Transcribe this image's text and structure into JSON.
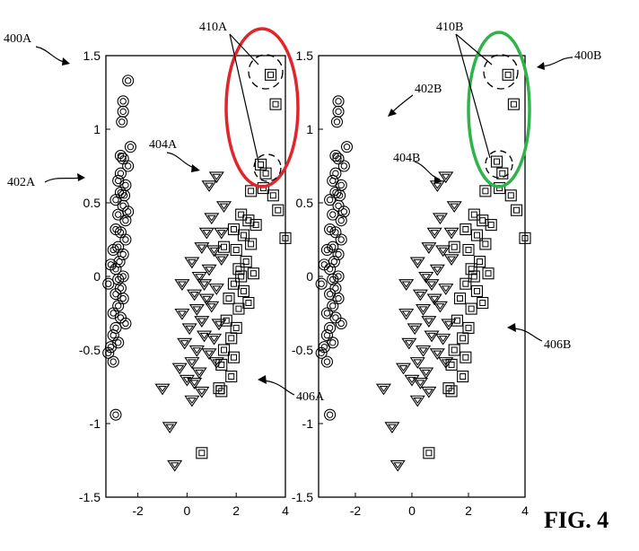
{
  "figure_label": "FIG. 4",
  "chart_data": [
    {
      "type": "scatter",
      "xlim": [
        -3.3,
        4.0
      ],
      "ylim": [
        -1.5,
        1.5
      ],
      "xticks": [
        "-2",
        "0",
        "2",
        "4"
      ],
      "yticks": [
        "-1.5",
        "-1",
        "-0.5",
        "0",
        "0.5",
        "1",
        "1.5"
      ],
      "grid": false,
      "series": [
        {
          "marker": "circle",
          "points": [
            [
              -2.4,
              1.33
            ],
            [
              -2.6,
              1.19
            ],
            [
              -2.6,
              1.12
            ],
            [
              -2.65,
              1.05
            ],
            [
              -2.3,
              0.88
            ],
            [
              -2.7,
              0.82
            ],
            [
              -2.6,
              0.8
            ],
            [
              -2.4,
              0.75
            ],
            [
              -2.7,
              0.7
            ],
            [
              -2.8,
              0.65
            ],
            [
              -2.5,
              0.62
            ],
            [
              -2.7,
              0.57
            ],
            [
              -2.9,
              0.52
            ],
            [
              -2.6,
              0.48
            ],
            [
              -2.4,
              0.44
            ],
            [
              -2.8,
              0.42
            ],
            [
              -2.5,
              0.38
            ],
            [
              -2.9,
              0.32
            ],
            [
              -2.7,
              0.3
            ],
            [
              -2.5,
              0.25
            ],
            [
              -2.8,
              0.2
            ],
            [
              -3.0,
              0.18
            ],
            [
              -2.6,
              0.15
            ],
            [
              -2.75,
              0.1
            ],
            [
              -2.9,
              0.05
            ],
            [
              -2.6,
              0.0
            ],
            [
              -2.8,
              -0.02
            ],
            [
              -3.2,
              -0.05
            ],
            [
              -2.7,
              -0.08
            ],
            [
              -2.9,
              -0.12
            ],
            [
              -2.6,
              -0.15
            ],
            [
              -2.8,
              -0.2
            ],
            [
              -3.0,
              -0.25
            ],
            [
              -2.7,
              -0.28
            ],
            [
              -2.5,
              -0.32
            ],
            [
              -2.9,
              -0.35
            ],
            [
              -3.0,
              -0.4
            ],
            [
              -2.8,
              -0.45
            ],
            [
              -3.1,
              -0.48
            ],
            [
              -3.2,
              -0.52
            ],
            [
              -3.0,
              -0.58
            ],
            [
              -2.9,
              -0.94
            ],
            [
              -3.1,
              0.08
            ],
            [
              -2.55,
              0.55
            ]
          ]
        },
        {
          "marker": "triangle",
          "points": [
            [
              1.2,
              0.68
            ],
            [
              0.9,
              0.62
            ],
            [
              1.5,
              0.48
            ],
            [
              1.0,
              0.4
            ],
            [
              0.8,
              0.3
            ],
            [
              0.6,
              0.2
            ],
            [
              1.1,
              0.18
            ],
            [
              1.4,
              0.12
            ],
            [
              0.9,
              0.05
            ],
            [
              0.5,
              0.0
            ],
            [
              0.7,
              -0.05
            ],
            [
              1.2,
              -0.08
            ],
            [
              0.3,
              -0.12
            ],
            [
              0.8,
              -0.15
            ],
            [
              1.0,
              -0.2
            ],
            [
              0.4,
              -0.22
            ],
            [
              -0.2,
              -0.25
            ],
            [
              0.6,
              -0.3
            ],
            [
              1.3,
              -0.32
            ],
            [
              0.1,
              -0.35
            ],
            [
              0.7,
              -0.4
            ],
            [
              1.1,
              -0.42
            ],
            [
              -0.1,
              -0.45
            ],
            [
              0.4,
              -0.5
            ],
            [
              0.9,
              -0.52
            ],
            [
              0.2,
              -0.58
            ],
            [
              1.2,
              -0.58
            ],
            [
              -0.3,
              -0.62
            ],
            [
              0.5,
              -0.65
            ],
            [
              0.0,
              -0.7
            ],
            [
              0.3,
              -0.72
            ],
            [
              0.6,
              -0.78
            ],
            [
              -1.0,
              -0.76
            ],
            [
              0.2,
              -0.84
            ],
            [
              -0.7,
              -1.02
            ],
            [
              -0.5,
              -1.28
            ],
            [
              1.4,
              0.3
            ],
            [
              0.2,
              0.1
            ],
            [
              -0.2,
              -0.05
            ]
          ]
        },
        {
          "marker": "square",
          "points": [
            [
              3.4,
              1.37
            ],
            [
              3.6,
              1.17
            ],
            [
              3.0,
              0.76
            ],
            [
              3.2,
              0.7
            ],
            [
              3.1,
              0.6
            ],
            [
              2.6,
              0.58
            ],
            [
              3.5,
              0.55
            ],
            [
              3.7,
              0.45
            ],
            [
              2.2,
              0.42
            ],
            [
              2.5,
              0.38
            ],
            [
              2.8,
              0.35
            ],
            [
              1.9,
              0.32
            ],
            [
              2.3,
              0.28
            ],
            [
              2.6,
              0.22
            ],
            [
              2.0,
              0.18
            ],
            [
              4.0,
              0.26
            ],
            [
              2.4,
              0.1
            ],
            [
              2.1,
              0.05
            ],
            [
              2.7,
              0.02
            ],
            [
              1.9,
              -0.05
            ],
            [
              2.3,
              -0.1
            ],
            [
              1.7,
              -0.15
            ],
            [
              2.5,
              -0.18
            ],
            [
              2.1,
              -0.22
            ],
            [
              1.6,
              -0.3
            ],
            [
              2.0,
              -0.35
            ],
            [
              1.8,
              -0.42
            ],
            [
              1.5,
              -0.5
            ],
            [
              1.9,
              -0.55
            ],
            [
              1.4,
              -0.6
            ],
            [
              1.8,
              -0.68
            ],
            [
              1.3,
              -0.76
            ],
            [
              1.4,
              -0.78
            ],
            [
              0.6,
              -1.2
            ],
            [
              1.5,
              0.2
            ],
            [
              2.2,
              0.0
            ]
          ]
        }
      ]
    },
    {
      "type": "scatter",
      "xlim": [
        -3.3,
        4.0
      ],
      "ylim": [
        -1.5,
        1.5
      ],
      "xticks": [
        "-2",
        "0",
        "2",
        "4"
      ],
      "yticks": [
        "-1.5",
        "-1",
        "-0.5",
        "0",
        "0.5",
        "1",
        "1.5"
      ],
      "grid": false,
      "series": [
        {
          "marker": "circle",
          "points": [
            [
              -2.6,
              1.19
            ],
            [
              -2.6,
              1.12
            ],
            [
              -2.65,
              1.05
            ],
            [
              -2.3,
              0.88
            ],
            [
              -2.7,
              0.82
            ],
            [
              -2.6,
              0.8
            ],
            [
              -2.4,
              0.75
            ],
            [
              -2.7,
              0.7
            ],
            [
              -2.8,
              0.65
            ],
            [
              -2.5,
              0.62
            ],
            [
              -2.7,
              0.57
            ],
            [
              -2.9,
              0.52
            ],
            [
              -2.6,
              0.48
            ],
            [
              -2.4,
              0.44
            ],
            [
              -2.8,
              0.42
            ],
            [
              -2.5,
              0.38
            ],
            [
              -2.9,
              0.32
            ],
            [
              -2.7,
              0.3
            ],
            [
              -2.5,
              0.25
            ],
            [
              -2.8,
              0.2
            ],
            [
              -3.0,
              0.18
            ],
            [
              -2.6,
              0.15
            ],
            [
              -2.75,
              0.1
            ],
            [
              -2.9,
              0.05
            ],
            [
              -2.6,
              0.0
            ],
            [
              -2.8,
              -0.02
            ],
            [
              -3.2,
              -0.05
            ],
            [
              -2.7,
              -0.08
            ],
            [
              -2.9,
              -0.12
            ],
            [
              -2.6,
              -0.15
            ],
            [
              -2.8,
              -0.2
            ],
            [
              -3.0,
              -0.25
            ],
            [
              -2.7,
              -0.28
            ],
            [
              -2.5,
              -0.32
            ],
            [
              -2.9,
              -0.35
            ],
            [
              -3.0,
              -0.4
            ],
            [
              -2.8,
              -0.45
            ],
            [
              -3.1,
              -0.48
            ],
            [
              -3.2,
              -0.52
            ],
            [
              -3.0,
              -0.58
            ],
            [
              -2.9,
              -0.94
            ],
            [
              -3.1,
              0.08
            ],
            [
              -2.55,
              0.55
            ]
          ]
        },
        {
          "marker": "triangle",
          "points": [
            [
              1.2,
              0.68
            ],
            [
              0.9,
              0.62
            ],
            [
              1.5,
              0.48
            ],
            [
              1.0,
              0.4
            ],
            [
              0.8,
              0.3
            ],
            [
              0.6,
              0.2
            ],
            [
              1.1,
              0.18
            ],
            [
              1.4,
              0.12
            ],
            [
              0.9,
              0.05
            ],
            [
              0.5,
              0.0
            ],
            [
              0.7,
              -0.05
            ],
            [
              1.2,
              -0.08
            ],
            [
              0.3,
              -0.12
            ],
            [
              0.8,
              -0.15
            ],
            [
              1.0,
              -0.2
            ],
            [
              0.4,
              -0.22
            ],
            [
              -0.2,
              -0.25
            ],
            [
              0.6,
              -0.3
            ],
            [
              1.3,
              -0.32
            ],
            [
              0.1,
              -0.35
            ],
            [
              0.7,
              -0.4
            ],
            [
              1.1,
              -0.42
            ],
            [
              -0.1,
              -0.45
            ],
            [
              0.4,
              -0.5
            ],
            [
              0.9,
              -0.52
            ],
            [
              0.2,
              -0.58
            ],
            [
              1.2,
              -0.58
            ],
            [
              -0.3,
              -0.62
            ],
            [
              0.5,
              -0.65
            ],
            [
              0.0,
              -0.7
            ],
            [
              0.3,
              -0.72
            ],
            [
              0.6,
              -0.78
            ],
            [
              -1.0,
              -0.76
            ],
            [
              0.2,
              -0.84
            ],
            [
              -0.7,
              -1.02
            ],
            [
              -0.5,
              -1.28
            ],
            [
              1.4,
              0.3
            ],
            [
              0.2,
              0.1
            ],
            [
              -0.2,
              -0.05
            ]
          ]
        },
        {
          "marker": "square",
          "points": [
            [
              3.4,
              1.37
            ],
            [
              3.6,
              1.17
            ],
            [
              3.0,
              0.78
            ],
            [
              3.2,
              0.7
            ],
            [
              3.1,
              0.6
            ],
            [
              2.6,
              0.58
            ],
            [
              3.5,
              0.55
            ],
            [
              3.7,
              0.45
            ],
            [
              2.2,
              0.42
            ],
            [
              2.5,
              0.38
            ],
            [
              2.8,
              0.35
            ],
            [
              1.9,
              0.32
            ],
            [
              2.3,
              0.28
            ],
            [
              2.6,
              0.22
            ],
            [
              2.0,
              0.18
            ],
            [
              4.0,
              0.26
            ],
            [
              2.4,
              0.1
            ],
            [
              2.1,
              0.05
            ],
            [
              2.7,
              0.02
            ],
            [
              1.9,
              -0.05
            ],
            [
              2.3,
              -0.1
            ],
            [
              1.7,
              -0.15
            ],
            [
              2.5,
              -0.18
            ],
            [
              2.1,
              -0.22
            ],
            [
              1.6,
              -0.3
            ],
            [
              2.0,
              -0.35
            ],
            [
              1.8,
              -0.42
            ],
            [
              1.5,
              -0.5
            ],
            [
              1.9,
              -0.55
            ],
            [
              1.4,
              -0.6
            ],
            [
              1.8,
              -0.68
            ],
            [
              1.3,
              -0.76
            ],
            [
              1.4,
              -0.78
            ],
            [
              0.6,
              -1.2
            ],
            [
              1.5,
              0.2
            ],
            [
              2.2,
              0.0
            ]
          ]
        }
      ]
    }
  ],
  "labels": {
    "left_figure": "400A",
    "left_circles": "402A",
    "left_triangles": "404A",
    "left_squares": "406A",
    "left_outliers": "410A",
    "right_figure": "400B",
    "right_circles": "402B",
    "right_triangles": "404B",
    "right_squares": "406B",
    "right_outliers": "410B"
  },
  "colors": {
    "left_highlight": "#e0252b",
    "right_highlight": "#2fb34a",
    "ink": "#000000"
  }
}
